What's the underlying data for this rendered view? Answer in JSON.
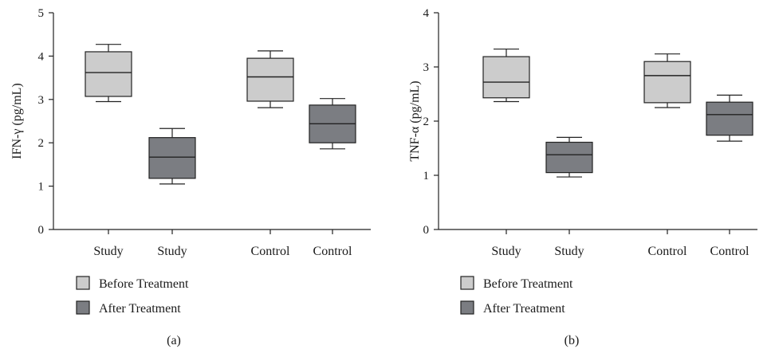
{
  "legend": [
    {
      "label": "Before Treatment",
      "color": "#cccccc"
    },
    {
      "label": "After Treatment",
      "color": "#7b7d82"
    }
  ],
  "chart_data": [
    {
      "type": "box",
      "panel_label": "(a)",
      "ylabel": "IFN-γ (pg/mL)",
      "ylim": [
        0,
        5
      ],
      "yticks": [
        0,
        1,
        2,
        3,
        4,
        5
      ],
      "categories": [
        "Study",
        "Study",
        "Control",
        "Control"
      ],
      "boxes": [
        {
          "group": "Before Treatment",
          "min": 2.95,
          "q1": 3.07,
          "median": 3.62,
          "q3": 4.1,
          "max": 4.27
        },
        {
          "group": "After Treatment",
          "min": 1.05,
          "q1": 1.18,
          "median": 1.67,
          "q3": 2.12,
          "max": 2.33
        },
        {
          "group": "Before Treatment",
          "min": 2.81,
          "q1": 2.96,
          "median": 3.52,
          "q3": 3.95,
          "max": 4.12
        },
        {
          "group": "After Treatment",
          "min": 1.86,
          "q1": 2.0,
          "median": 2.44,
          "q3": 2.87,
          "max": 3.02
        }
      ]
    },
    {
      "type": "box",
      "panel_label": "(b)",
      "ylabel": "TNF-α (pg/mL)",
      "ylim": [
        0,
        4
      ],
      "yticks": [
        0,
        1,
        2,
        3,
        4
      ],
      "categories": [
        "Study",
        "Study",
        "Control",
        "Control"
      ],
      "boxes": [
        {
          "group": "Before Treatment",
          "min": 2.36,
          "q1": 2.43,
          "median": 2.72,
          "q3": 3.19,
          "max": 3.33
        },
        {
          "group": "After Treatment",
          "min": 0.97,
          "q1": 1.05,
          "median": 1.38,
          "q3": 1.61,
          "max": 1.7
        },
        {
          "group": "Before Treatment",
          "min": 2.25,
          "q1": 2.34,
          "median": 2.84,
          "q3": 3.1,
          "max": 3.24
        },
        {
          "group": "After Treatment",
          "min": 1.63,
          "q1": 1.74,
          "median": 2.12,
          "q3": 2.35,
          "max": 2.48
        }
      ]
    }
  ]
}
